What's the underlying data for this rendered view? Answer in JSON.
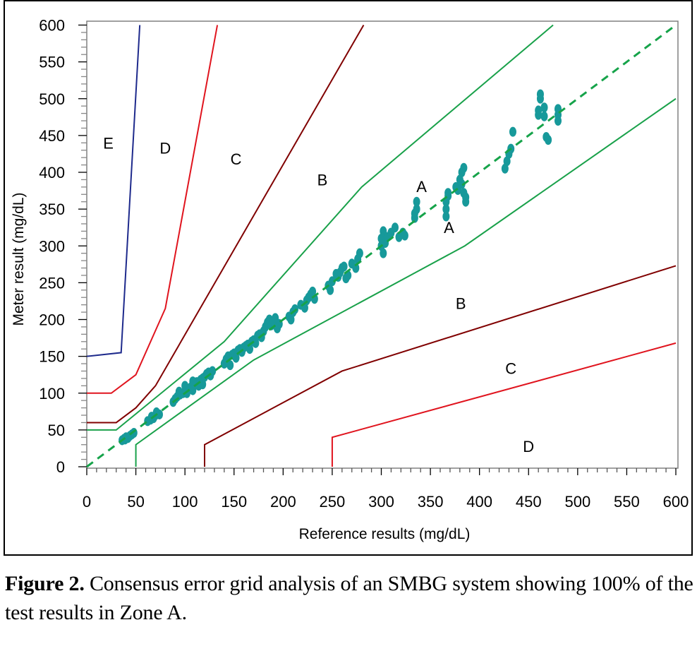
{
  "chart_data": {
    "type": "scatter",
    "title": "",
    "xlabel": "Reference results (mg/dL)",
    "ylabel": "Meter result (mg/dL)",
    "xlim": [
      0,
      600
    ],
    "ylim": [
      0,
      600
    ],
    "xticks": [
      "0",
      "50",
      "100",
      "150",
      "200",
      "250",
      "300",
      "350",
      "400",
      "450",
      "500",
      "550",
      "600"
    ],
    "yticks": [
      "0",
      "50",
      "100",
      "150",
      "200",
      "250",
      "300",
      "350",
      "400",
      "450",
      "500",
      "550",
      "600"
    ],
    "grid": false,
    "identity_line": {
      "name": "y = x",
      "style": "dashed",
      "color": "#16a34a"
    },
    "zone_boundaries": [
      {
        "name": "A-upper",
        "color": "#19a14a",
        "points": [
          [
            0,
            50
          ],
          [
            30,
            50
          ],
          [
            140,
            170
          ],
          [
            280,
            380
          ],
          [
            475,
            600
          ]
        ]
      },
      {
        "name": "A-lower",
        "color": "#19a14a",
        "points": [
          [
            50,
            0
          ],
          [
            50,
            30
          ],
          [
            170,
            145
          ],
          [
            385,
            300
          ],
          [
            600,
            500
          ]
        ]
      },
      {
        "name": "B-upper",
        "color": "#800000",
        "points": [
          [
            0,
            60
          ],
          [
            30,
            60
          ],
          [
            50,
            80
          ],
          [
            70,
            110
          ],
          [
            282,
            600
          ]
        ]
      },
      {
        "name": "B-lower",
        "color": "#800000",
        "points": [
          [
            120,
            0
          ],
          [
            120,
            30
          ],
          [
            260,
            130
          ],
          [
            600,
            273
          ]
        ]
      },
      {
        "name": "C-upper",
        "color": "#e0141e",
        "points": [
          [
            0,
            100
          ],
          [
            25,
            100
          ],
          [
            50,
            125
          ],
          [
            80,
            215
          ],
          [
            133,
            600
          ]
        ]
      },
      {
        "name": "C-lower",
        "color": "#e0141e",
        "points": [
          [
            250,
            0
          ],
          [
            250,
            40
          ],
          [
            600,
            168
          ]
        ]
      },
      {
        "name": "D-upper",
        "color": "#1e2a8c",
        "points": [
          [
            0,
            150
          ],
          [
            35,
            155
          ],
          [
            54,
            600
          ]
        ]
      }
    ],
    "zone_labels": [
      {
        "text": "E",
        "x": 22,
        "y": 440
      },
      {
        "text": "D",
        "x": 80,
        "y": 433
      },
      {
        "text": "C",
        "x": 152,
        "y": 418
      },
      {
        "text": "B",
        "x": 240,
        "y": 390
      },
      {
        "text": "A",
        "x": 341,
        "y": 381
      },
      {
        "text": "A",
        "x": 369,
        "y": 325
      },
      {
        "text": "B",
        "x": 381,
        "y": 222
      },
      {
        "text": "C",
        "x": 432,
        "y": 134
      },
      {
        "text": "D",
        "x": 450,
        "y": 28
      }
    ],
    "series": [
      {
        "name": "Test results",
        "color": "#17999a",
        "points": [
          [
            36,
            36
          ],
          [
            38,
            38
          ],
          [
            40,
            40
          ],
          [
            42,
            39
          ],
          [
            44,
            42
          ],
          [
            46,
            44
          ],
          [
            48,
            46
          ],
          [
            39,
            37
          ],
          [
            62,
            62
          ],
          [
            65,
            64
          ],
          [
            68,
            66
          ],
          [
            70,
            70
          ],
          [
            72,
            72
          ],
          [
            66,
            68
          ],
          [
            74,
            71
          ],
          [
            71,
            74
          ],
          [
            88,
            88
          ],
          [
            90,
            92
          ],
          [
            92,
            95
          ],
          [
            95,
            98
          ],
          [
            98,
            100
          ],
          [
            100,
            103
          ],
          [
            102,
            100
          ],
          [
            104,
            106
          ],
          [
            106,
            108
          ],
          [
            108,
            104
          ],
          [
            110,
            112
          ],
          [
            112,
            115
          ],
          [
            114,
            110
          ],
          [
            116,
            118
          ],
          [
            118,
            120
          ],
          [
            120,
            122
          ],
          [
            122,
            126
          ],
          [
            124,
            128
          ],
          [
            126,
            124
          ],
          [
            128,
            130
          ],
          [
            94,
            102
          ],
          [
            100,
            110
          ],
          [
            108,
            116
          ],
          [
            118,
            112
          ],
          [
            140,
            140
          ],
          [
            142,
            146
          ],
          [
            144,
            150
          ],
          [
            146,
            138
          ],
          [
            148,
            152
          ],
          [
            150,
            154
          ],
          [
            152,
            148
          ],
          [
            154,
            158
          ],
          [
            156,
            160
          ],
          [
            158,
            156
          ],
          [
            160,
            162
          ],
          [
            162,
            164
          ],
          [
            164,
            166
          ],
          [
            166,
            160
          ],
          [
            168,
            170
          ],
          [
            170,
            172
          ],
          [
            172,
            168
          ],
          [
            174,
            178
          ],
          [
            176,
            180
          ],
          [
            178,
            176
          ],
          [
            180,
            184
          ],
          [
            182,
            190
          ],
          [
            184,
            196
          ],
          [
            186,
            200
          ],
          [
            188,
            192
          ],
          [
            190,
            198
          ],
          [
            192,
            202
          ],
          [
            194,
            188
          ],
          [
            196,
            194
          ],
          [
            206,
            204
          ],
          [
            208,
            200
          ],
          [
            210,
            210
          ],
          [
            212,
            214
          ],
          [
            218,
            220
          ],
          [
            222,
            216
          ],
          [
            224,
            226
          ],
          [
            226,
            230
          ],
          [
            228,
            234
          ],
          [
            230,
            238
          ],
          [
            232,
            228
          ],
          [
            246,
            246
          ],
          [
            248,
            240
          ],
          [
            250,
            252
          ],
          [
            254,
            262
          ],
          [
            256,
            258
          ],
          [
            258,
            264
          ],
          [
            260,
            270
          ],
          [
            262,
            272
          ],
          [
            264,
            256
          ],
          [
            266,
            260
          ],
          [
            270,
            276
          ],
          [
            276,
            282
          ],
          [
            278,
            290
          ],
          [
            274,
            270
          ],
          [
            300,
            300
          ],
          [
            300,
            310
          ],
          [
            302,
            320
          ],
          [
            302,
            290
          ],
          [
            304,
            304
          ],
          [
            306,
            312
          ],
          [
            310,
            318
          ],
          [
            314,
            325
          ],
          [
            318,
            312
          ],
          [
            322,
            318
          ],
          [
            324,
            314
          ],
          [
            334,
            338
          ],
          [
            336,
            350
          ],
          [
            336,
            360
          ],
          [
            334,
            344
          ],
          [
            366,
            340
          ],
          [
            366,
            350
          ],
          [
            366,
            360
          ],
          [
            368,
            368
          ],
          [
            368,
            372
          ],
          [
            376,
            380
          ],
          [
            378,
            376
          ],
          [
            380,
            390
          ],
          [
            382,
            384
          ],
          [
            382,
            400
          ],
          [
            384,
            406
          ],
          [
            384,
            372
          ],
          [
            386,
            360
          ],
          [
            386,
            366
          ],
          [
            426,
            405
          ],
          [
            428,
            415
          ],
          [
            430,
            425
          ],
          [
            432,
            432
          ],
          [
            434,
            455
          ],
          [
            460,
            478
          ],
          [
            460,
            484
          ],
          [
            462,
            500
          ],
          [
            462,
            506
          ],
          [
            466,
            476
          ],
          [
            466,
            488
          ],
          [
            468,
            448
          ],
          [
            470,
            444
          ],
          [
            480,
            470
          ],
          [
            480,
            478
          ],
          [
            480,
            486
          ]
        ]
      }
    ]
  },
  "caption": {
    "label": "Figure 2.",
    "text": " Consensus error grid analysis of an SMBG system showing 100% of the test results in Zone A."
  }
}
